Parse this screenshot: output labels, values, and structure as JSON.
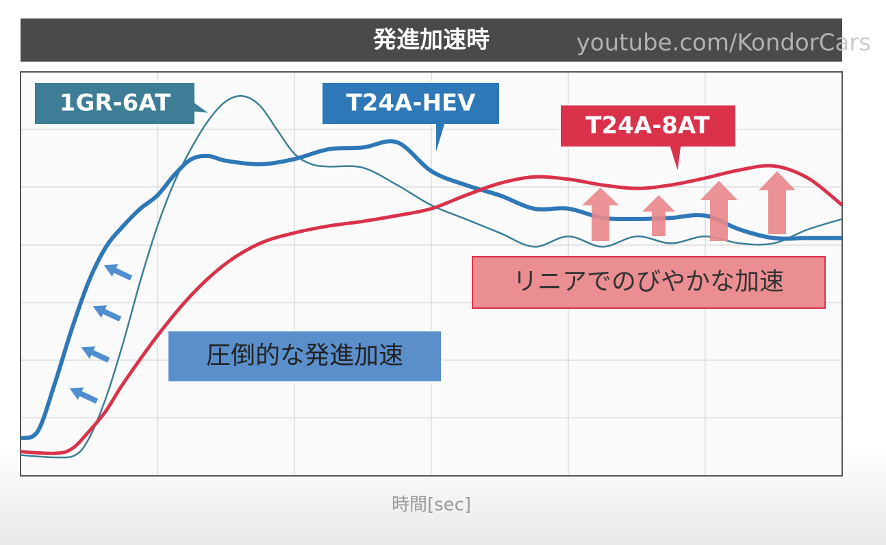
{
  "chart_data": {
    "type": "line",
    "title": "発進加速時",
    "watermark": "youtube.com/KondorCars",
    "x_label": "時間[sec]",
    "xlim": [
      0,
      6
    ],
    "ylim": [
      0,
      7
    ],
    "series": [
      {
        "name": "1GR-6AT",
        "color": "#3a7f96",
        "x": [
          0,
          0.25,
          0.4,
          0.5,
          0.625,
          0.75,
          0.875,
          1,
          1.125,
          1.25,
          1.375,
          1.5,
          1.625,
          1.75,
          1.875,
          2,
          2.125,
          2.25,
          2.5,
          2.75,
          3,
          3.25,
          3.5,
          3.75,
          4,
          4.25,
          4.5,
          4.75,
          5,
          5.25,
          5.5,
          5.75,
          6
        ],
        "values": [
          0.36,
          0.32,
          0.36,
          0.65,
          1.36,
          2.31,
          3.38,
          4.33,
          5.1,
          5.69,
          6.17,
          6.49,
          6.58,
          6.41,
          5.99,
          5.58,
          5.4,
          5.36,
          5.34,
          5.04,
          4.69,
          4.45,
          4.21,
          3.97,
          4.15,
          3.97,
          4.15,
          4.03,
          4.15,
          4.03,
          4.03,
          4.27,
          4.45
        ]
      },
      {
        "name": "T24A-HEV",
        "color": "#2e78b7",
        "x": [
          0,
          0.125,
          0.25,
          0.375,
          0.5,
          0.625,
          0.75,
          0.875,
          1,
          1.125,
          1.25,
          1.375,
          1.5,
          1.75,
          2,
          2.25,
          2.5,
          2.75,
          3,
          3.25,
          3.5,
          3.75,
          4,
          4.25,
          4.5,
          4.75,
          5,
          5.25,
          5.5,
          5.75,
          6
        ],
        "values": [
          0.65,
          0.77,
          1.6,
          2.55,
          3.38,
          3.97,
          4.33,
          4.63,
          4.86,
          5.22,
          5.49,
          5.54,
          5.46,
          5.4,
          5.49,
          5.66,
          5.69,
          5.78,
          5.28,
          5.04,
          4.86,
          4.63,
          4.63,
          4.47,
          4.45,
          4.47,
          4.51,
          4.27,
          4.12,
          4.12,
          4.12
        ]
      },
      {
        "name": "T24A-8AT",
        "color": "#d9324a",
        "x": [
          0,
          0.25,
          0.375,
          0.5,
          0.625,
          0.75,
          1,
          1.25,
          1.5,
          1.75,
          2,
          2.25,
          2.5,
          2.75,
          3,
          3.25,
          3.5,
          3.75,
          4,
          4.25,
          4.5,
          4.75,
          5,
          5.25,
          5.5,
          5.75,
          6
        ],
        "values": [
          0.42,
          0.39,
          0.47,
          0.77,
          1.13,
          1.6,
          2.43,
          3.14,
          3.68,
          4.03,
          4.21,
          4.33,
          4.41,
          4.51,
          4.63,
          4.86,
          5.07,
          5.18,
          5.14,
          5.04,
          4.98,
          5.04,
          5.16,
          5.3,
          5.37,
          5.16,
          4.69
        ]
      }
    ],
    "annotations": [
      "リニアでのびやかな加速",
      "圧倒的な発進加速"
    ]
  }
}
